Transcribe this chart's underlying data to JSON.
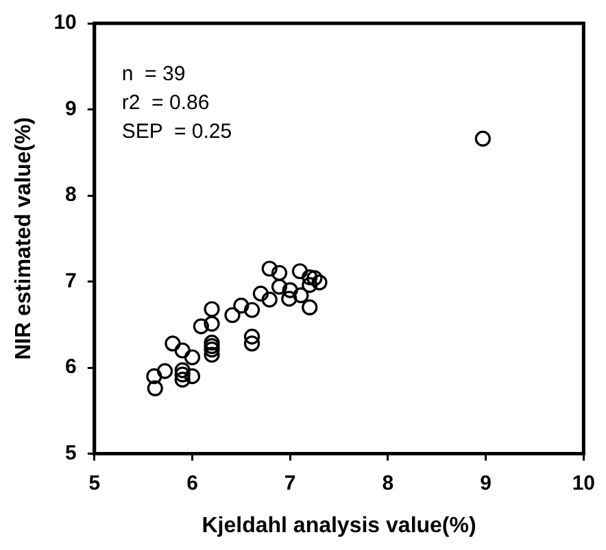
{
  "chart_data": {
    "type": "scatter",
    "xlabel": "Kjeldahl analysis value(%)",
    "ylabel": "NIR estimated value(%)",
    "annotations": [
      "n  = 39",
      "r2  = 0.86",
      "SEP  = 0.25"
    ],
    "x": [
      8.97,
      5.61,
      5.62,
      5.72,
      5.8,
      5.9,
      5.9,
      5.9,
      6.0,
      6.0,
      6.09,
      6.2,
      6.2,
      6.2,
      6.2,
      6.2,
      6.41,
      6.5,
      6.61,
      6.61,
      6.61,
      6.7,
      6.79,
      6.79,
      6.89,
      6.89,
      6.99,
      7.0,
      7.1,
      7.11,
      7.2,
      7.2,
      7.2,
      7.3,
      7.25,
      5.9,
      6.2
    ],
    "values": [
      8.66,
      5.9,
      5.76,
      5.96,
      6.28,
      6.2,
      5.92,
      5.86,
      6.12,
      5.9,
      6.48,
      6.68,
      6.51,
      6.29,
      6.21,
      6.15,
      6.61,
      6.72,
      6.67,
      6.36,
      6.28,
      6.86,
      6.79,
      7.15,
      7.1,
      6.94,
      6.8,
      6.9,
      7.12,
      6.84,
      7.05,
      6.96,
      6.7,
      6.99,
      7.04,
      5.97,
      6.25
    ],
    "color": "#000000",
    "marker": "circle",
    "xlim": [
      5,
      10
    ],
    "ylim": [
      5,
      10
    ],
    "xticks": [
      5,
      6,
      7,
      8,
      9,
      10
    ],
    "yticks": [
      5,
      6,
      7,
      8,
      9,
      10
    ]
  }
}
